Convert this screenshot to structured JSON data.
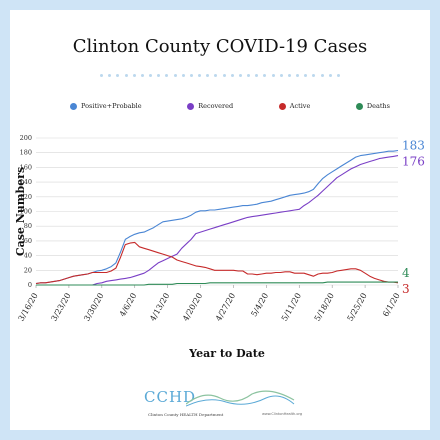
{
  "chart_data": {
    "type": "line",
    "title": "Clinton County COVID-19 Cases",
    "xlabel": "Year to Date",
    "ylabel": "Case Numbers",
    "ylim": [
      0,
      200
    ],
    "yticks": [
      "0",
      "20",
      "40",
      "60",
      "80",
      "100",
      "120",
      "140",
      "160",
      "180",
      "200"
    ],
    "xticks": [
      "3/16/20",
      "3/23/20",
      "3/30/20",
      "4/6/20",
      "4/13/20",
      "4/20/20",
      "4/27/20",
      "5/4/20",
      "5/11/20",
      "5/18/20",
      "5/25/20",
      "6/1/20"
    ],
    "x": [
      "3/16",
      "3/17",
      "3/18",
      "3/19",
      "3/20",
      "3/21",
      "3/22",
      "3/23",
      "3/24",
      "3/25",
      "3/26",
      "3/27",
      "3/28",
      "3/29",
      "3/30",
      "3/31",
      "4/1",
      "4/2",
      "4/3",
      "4/4",
      "4/5",
      "4/6",
      "4/7",
      "4/8",
      "4/9",
      "4/10",
      "4/11",
      "4/12",
      "4/13",
      "4/14",
      "4/15",
      "4/16",
      "4/17",
      "4/18",
      "4/19",
      "4/20",
      "4/21",
      "4/22",
      "4/23",
      "4/24",
      "4/25",
      "4/26",
      "4/27",
      "4/28",
      "4/29",
      "4/30",
      "5/1",
      "5/2",
      "5/3",
      "5/4",
      "5/5",
      "5/6",
      "5/7",
      "5/8",
      "5/9",
      "5/10",
      "5/11",
      "5/12",
      "5/13",
      "5/14",
      "5/15",
      "5/16",
      "5/17",
      "5/18",
      "5/19",
      "5/20",
      "5/21",
      "5/22",
      "5/23",
      "5/24",
      "5/25",
      "5/26",
      "5/27",
      "5/28",
      "5/29",
      "5/30",
      "5/31",
      "6/1"
    ],
    "series": [
      {
        "name": "Positive+Probable",
        "color": "#4a86d4",
        "end_label": "183",
        "values": [
          2,
          3,
          3,
          4,
          5,
          6,
          8,
          10,
          12,
          13,
          14,
          15,
          17,
          19,
          20,
          22,
          25,
          30,
          45,
          62,
          66,
          69,
          71,
          72,
          75,
          78,
          82,
          86,
          87,
          88,
          89,
          90,
          92,
          95,
          99,
          101,
          101,
          102,
          102,
          103,
          104,
          105,
          106,
          107,
          108,
          108,
          109,
          110,
          112,
          113,
          114,
          116,
          118,
          120,
          122,
          123,
          124,
          125,
          127,
          130,
          138,
          145,
          150,
          154,
          158,
          162,
          166,
          170,
          174,
          176,
          177,
          178,
          179,
          180,
          181,
          182,
          182,
          183
        ]
      },
      {
        "name": "Recovered",
        "color": "#7a3fc6",
        "end_label": "176",
        "values": [
          0,
          0,
          0,
          0,
          0,
          0,
          0,
          0,
          0,
          0,
          0,
          0,
          0,
          2,
          3,
          5,
          6,
          7,
          8,
          9,
          10,
          12,
          14,
          16,
          20,
          25,
          30,
          33,
          36,
          39,
          42,
          50,
          56,
          62,
          70,
          72,
          74,
          76,
          78,
          80,
          82,
          84,
          86,
          88,
          90,
          92,
          93,
          94,
          95,
          96,
          97,
          98,
          99,
          100,
          101,
          102,
          103,
          108,
          112,
          117,
          122,
          128,
          134,
          140,
          146,
          150,
          154,
          158,
          161,
          164,
          166,
          168,
          170,
          172,
          173,
          174,
          175,
          176
        ]
      },
      {
        "name": "Active",
        "color": "#c62a2a",
        "end_label": "3",
        "values": [
          2,
          3,
          3,
          4,
          5,
          6,
          8,
          10,
          12,
          13,
          14,
          15,
          17,
          17,
          17,
          17,
          19,
          23,
          38,
          55,
          57,
          58,
          52,
          50,
          48,
          46,
          44,
          42,
          40,
          38,
          34,
          32,
          30,
          28,
          26,
          25,
          24,
          22,
          20,
          20,
          20,
          20,
          20,
          19,
          19,
          15,
          15,
          14,
          15,
          16,
          16,
          17,
          17,
          18,
          18,
          16,
          16,
          16,
          14,
          12,
          15,
          16,
          16,
          17,
          19,
          20,
          21,
          22,
          22,
          20,
          16,
          12,
          9,
          7,
          5,
          4,
          4,
          3
        ]
      },
      {
        "name": "Deaths",
        "color": "#2e8b57",
        "end_label": "4",
        "values": [
          0,
          0,
          0,
          0,
          0,
          0,
          0,
          0,
          0,
          0,
          0,
          0,
          0,
          0,
          0,
          0,
          0,
          0,
          0,
          0,
          0,
          0,
          0,
          0,
          1,
          1,
          1,
          1,
          1,
          1,
          2,
          2,
          2,
          2,
          2,
          2,
          2,
          3,
          3,
          3,
          3,
          3,
          3,
          3,
          3,
          3,
          3,
          3,
          3,
          3,
          3,
          3,
          3,
          3,
          3,
          3,
          3,
          3,
          3,
          3,
          3,
          3,
          4,
          4,
          4,
          4,
          4,
          4,
          4,
          4,
          4,
          4,
          4,
          4,
          4,
          4,
          4,
          4
        ]
      }
    ],
    "grid": true,
    "legend": "top"
  },
  "footer": {
    "logo": "CCHD",
    "org": "Clinton County HEALTH Department",
    "url": "www.ClintonHealth.org"
  }
}
